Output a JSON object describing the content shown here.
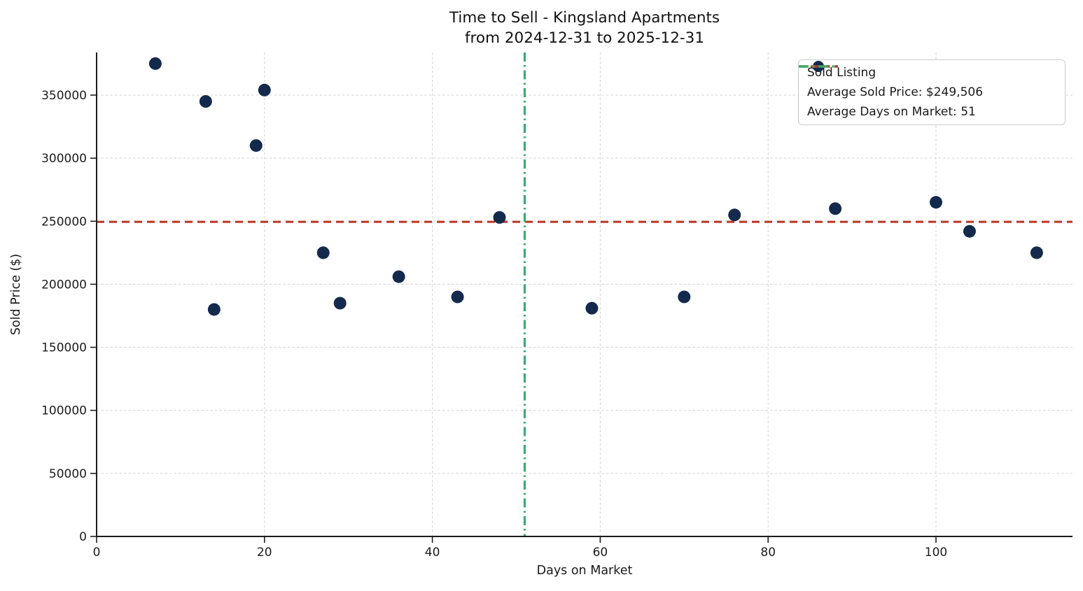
{
  "figure": {
    "title_line1": "Time to Sell - Kingsland Apartments",
    "title_line2": "from 2024-12-31 to 2025-12-31",
    "xlabel": "Days on Market",
    "ylabel": "Sold Price ($)"
  },
  "chart_data": {
    "type": "scatter",
    "title": "Time to Sell - Kingsland Apartments\nfrom 2024-12-31 to 2025-12-31",
    "xlabel": "Days on Market",
    "ylabel": "Sold Price ($)",
    "xlim": [
      0,
      116
    ],
    "ylim": [
      0,
      384000
    ],
    "x_ticks": [
      0,
      20,
      40,
      60,
      80,
      100
    ],
    "y_ticks": [
      0,
      50000,
      100000,
      150000,
      200000,
      250000,
      300000,
      350000
    ],
    "grid": true,
    "legend_position": "upper right",
    "series": [
      {
        "name": "Sold Listing",
        "marker": "circle",
        "color": "#132a4c",
        "points": [
          {
            "days_on_market": 7,
            "sold_price": 375000
          },
          {
            "days_on_market": 13,
            "sold_price": 345000
          },
          {
            "days_on_market": 20,
            "sold_price": 354000
          },
          {
            "days_on_market": 19,
            "sold_price": 310000
          },
          {
            "days_on_market": 14,
            "sold_price": 180000
          },
          {
            "days_on_market": 27,
            "sold_price": 225000
          },
          {
            "days_on_market": 29,
            "sold_price": 185000
          },
          {
            "days_on_market": 36,
            "sold_price": 206000
          },
          {
            "days_on_market": 43,
            "sold_price": 190000
          },
          {
            "days_on_market": 48,
            "sold_price": 253000
          },
          {
            "days_on_market": 59,
            "sold_price": 181000
          },
          {
            "days_on_market": 70,
            "sold_price": 190000
          },
          {
            "days_on_market": 76,
            "sold_price": 255000
          },
          {
            "days_on_market": 88,
            "sold_price": 260000
          },
          {
            "days_on_market": 100,
            "sold_price": 265000
          },
          {
            "days_on_market": 104,
            "sold_price": 242000
          },
          {
            "days_on_market": 112,
            "sold_price": 225000
          }
        ]
      }
    ],
    "reference_lines": [
      {
        "label": "Average Sold Price: $249,506",
        "orientation": "horizontal",
        "value": 249506,
        "line_style": "dashed",
        "color": "#bb3b2b"
      },
      {
        "label": "Average Days on Market: 51",
        "orientation": "vertical",
        "value": 51,
        "line_style": "dashdot",
        "color": "#3cab6f"
      }
    ],
    "legend_items": [
      {
        "label": "Sold Listing",
        "marker": "dot",
        "color": "#132a4c"
      },
      {
        "label": "Average Sold Price: $249,506",
        "marker": "dashed-line",
        "color": "#bb3b2b"
      },
      {
        "label": "Average Days on Market: 51",
        "marker": "dashdot-line",
        "color": "#3cab6f"
      }
    ]
  }
}
